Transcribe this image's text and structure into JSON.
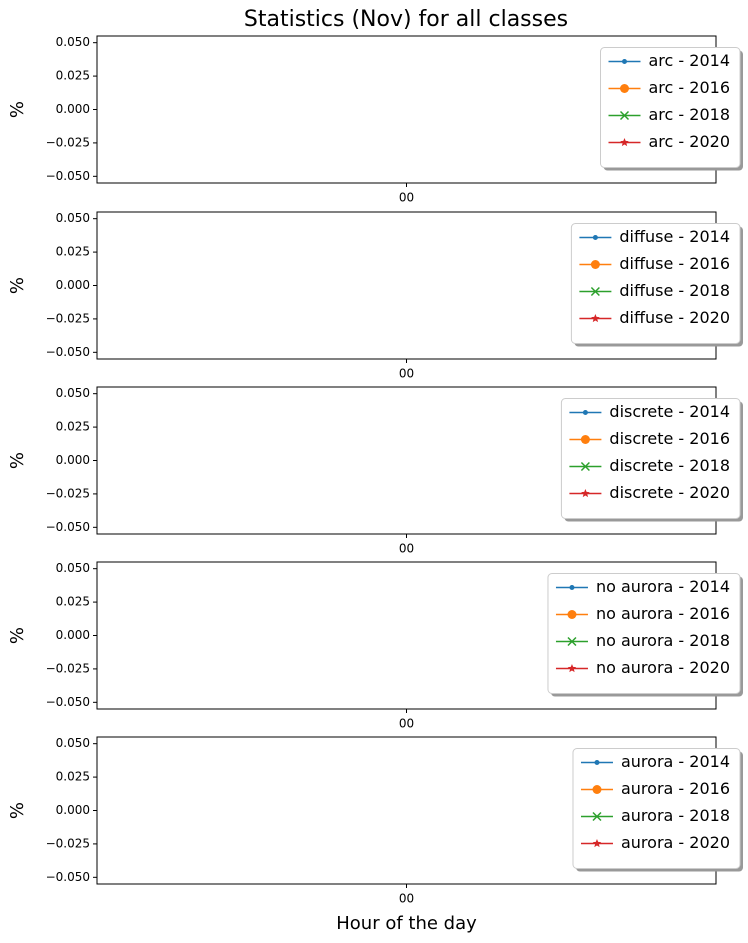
{
  "chart_data": [
    {
      "type": "line",
      "title": "Statistics (Nov) for all classes",
      "ylabel": "%",
      "categories": [
        "00"
      ],
      "series": [
        {
          "name": "arc - 2014",
          "color": "#1f77b4",
          "marker": "point",
          "values": [
            null
          ]
        },
        {
          "name": "arc - 2016",
          "color": "#ff7f0e",
          "marker": "circle",
          "values": [
            null
          ]
        },
        {
          "name": "arc - 2018",
          "color": "#2ca02c",
          "marker": "x",
          "values": [
            null
          ]
        },
        {
          "name": "arc - 2020",
          "color": "#d62728",
          "marker": "star",
          "values": [
            null
          ]
        }
      ],
      "ylim": [
        -0.055,
        0.055
      ],
      "yticks": [
        {
          "value": 0.05,
          "label": "0.050"
        },
        {
          "value": 0.025,
          "label": "0.025"
        },
        {
          "value": 0,
          "label": "0.000"
        },
        {
          "value": -0.025,
          "label": "−0.025"
        },
        {
          "value": -0.05,
          "label": "−0.050"
        }
      ],
      "legend": "right"
    },
    {
      "type": "line",
      "ylabel": "%",
      "categories": [
        "00"
      ],
      "series": [
        {
          "name": "diffuse - 2014",
          "color": "#1f77b4",
          "marker": "point",
          "values": [
            null
          ]
        },
        {
          "name": "diffuse - 2016",
          "color": "#ff7f0e",
          "marker": "circle",
          "values": [
            null
          ]
        },
        {
          "name": "diffuse - 2018",
          "color": "#2ca02c",
          "marker": "x",
          "values": [
            null
          ]
        },
        {
          "name": "diffuse - 2020",
          "color": "#d62728",
          "marker": "star",
          "values": [
            null
          ]
        }
      ],
      "ylim": [
        -0.055,
        0.055
      ],
      "yticks": [
        {
          "value": 0.05,
          "label": "0.050"
        },
        {
          "value": 0.025,
          "label": "0.025"
        },
        {
          "value": 0,
          "label": "0.000"
        },
        {
          "value": -0.025,
          "label": "−0.025"
        },
        {
          "value": -0.05,
          "label": "−0.050"
        }
      ],
      "legend": "right"
    },
    {
      "type": "line",
      "ylabel": "%",
      "categories": [
        "00"
      ],
      "series": [
        {
          "name": "discrete - 2014",
          "color": "#1f77b4",
          "marker": "point",
          "values": [
            null
          ]
        },
        {
          "name": "discrete - 2016",
          "color": "#ff7f0e",
          "marker": "circle",
          "values": [
            null
          ]
        },
        {
          "name": "discrete - 2018",
          "color": "#2ca02c",
          "marker": "x",
          "values": [
            null
          ]
        },
        {
          "name": "discrete - 2020",
          "color": "#d62728",
          "marker": "star",
          "values": [
            null
          ]
        }
      ],
      "ylim": [
        -0.055,
        0.055
      ],
      "yticks": [
        {
          "value": 0.05,
          "label": "0.050"
        },
        {
          "value": 0.025,
          "label": "0.025"
        },
        {
          "value": 0,
          "label": "0.000"
        },
        {
          "value": -0.025,
          "label": "−0.025"
        },
        {
          "value": -0.05,
          "label": "−0.050"
        }
      ],
      "legend": "right"
    },
    {
      "type": "line",
      "ylabel": "%",
      "categories": [
        "00"
      ],
      "series": [
        {
          "name": "no aurora - 2014",
          "color": "#1f77b4",
          "marker": "point",
          "values": [
            null
          ]
        },
        {
          "name": "no aurora - 2016",
          "color": "#ff7f0e",
          "marker": "circle",
          "values": [
            null
          ]
        },
        {
          "name": "no aurora - 2018",
          "color": "#2ca02c",
          "marker": "x",
          "values": [
            null
          ]
        },
        {
          "name": "no aurora - 2020",
          "color": "#d62728",
          "marker": "star",
          "values": [
            null
          ]
        }
      ],
      "ylim": [
        -0.055,
        0.055
      ],
      "yticks": [
        {
          "value": 0.05,
          "label": "0.050"
        },
        {
          "value": 0.025,
          "label": "0.025"
        },
        {
          "value": 0,
          "label": "0.000"
        },
        {
          "value": -0.025,
          "label": "−0.025"
        },
        {
          "value": -0.05,
          "label": "−0.050"
        }
      ],
      "legend": "right"
    },
    {
      "type": "line",
      "ylabel": "%",
      "xlabel": "Hour of the day",
      "categories": [
        "00"
      ],
      "series": [
        {
          "name": "aurora - 2014",
          "color": "#1f77b4",
          "marker": "point",
          "values": [
            null
          ]
        },
        {
          "name": "aurora - 2016",
          "color": "#ff7f0e",
          "marker": "circle",
          "values": [
            null
          ]
        },
        {
          "name": "aurora - 2018",
          "color": "#2ca02c",
          "marker": "x",
          "values": [
            null
          ]
        },
        {
          "name": "aurora - 2020",
          "color": "#d62728",
          "marker": "star",
          "values": [
            null
          ]
        }
      ],
      "ylim": [
        -0.055,
        0.055
      ],
      "yticks": [
        {
          "value": 0.05,
          "label": "0.050"
        },
        {
          "value": 0.025,
          "label": "0.025"
        },
        {
          "value": 0,
          "label": "0.000"
        },
        {
          "value": -0.025,
          "label": "−0.025"
        },
        {
          "value": -0.05,
          "label": "−0.050"
        }
      ],
      "legend": "right"
    }
  ]
}
